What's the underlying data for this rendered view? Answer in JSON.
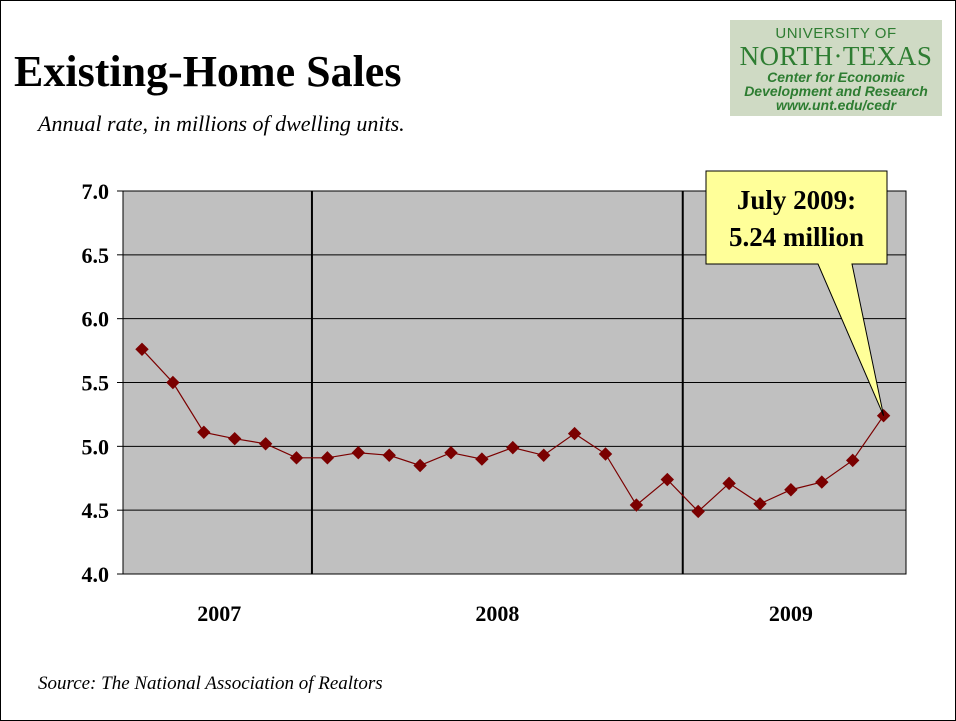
{
  "slide": {
    "title": "Existing-Home Sales",
    "subtitle": "Annual rate, in millions of dwelling units.",
    "source": "Source: The National Association of Realtors"
  },
  "logo": {
    "line1": "UNIVERSITY OF",
    "line2": "NORTH·TEXAS",
    "line3": "Center for Economic",
    "line4": "Development and Research",
    "line5": "www.unt.edu/cedr",
    "color": "#2e7d32"
  },
  "chart_data": {
    "type": "line",
    "title": "Existing-Home Sales",
    "subtitle": "Annual rate, in millions of dwelling units.",
    "xlabel": "",
    "ylabel": "",
    "ylim": [
      4.0,
      7.0
    ],
    "yticks": [
      "4.0",
      "4.5",
      "5.0",
      "5.5",
      "6.0",
      "6.5",
      "7.0"
    ],
    "year_labels": [
      "2007",
      "2008",
      "2009"
    ],
    "plot_background": "#c0c0c0",
    "marker_color": "#7b0000",
    "line_color": "#7b0000",
    "grid": true,
    "series": [
      {
        "values": [
          5.76,
          5.5,
          5.11,
          5.06,
          5.02,
          4.91,
          4.91,
          4.95,
          4.93,
          4.85,
          4.95,
          4.9,
          4.99,
          4.93,
          5.1,
          4.94,
          4.54,
          4.74,
          4.49,
          4.71,
          4.55,
          4.66,
          4.72,
          4.89,
          5.24
        ]
      }
    ],
    "annotation": {
      "line1": "July 2009:",
      "line2": "5.24 million",
      "point_index": 24,
      "background": "#ffff99"
    }
  }
}
